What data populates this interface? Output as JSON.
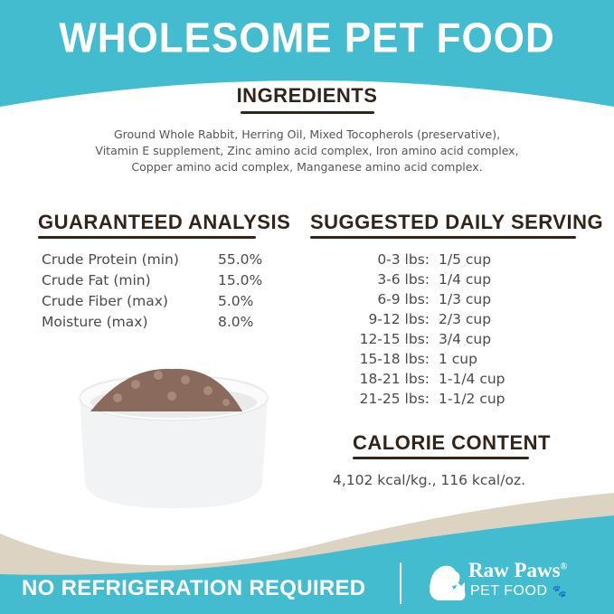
{
  "header": {
    "title": "WHOLESOME PET FOOD"
  },
  "ingredients": {
    "heading": "INGREDIENTS",
    "lines": [
      "Ground Whole Rabbit, Herring Oil, Mixed Tocopherols (preservative),",
      "Vitamin E supplement, Zinc amino acid complex, Iron amino acid complex,",
      "Copper amino acid complex, Manganese amino acid complex."
    ]
  },
  "analysis": {
    "heading": "GUARANTEED ANALYSIS",
    "rows": [
      {
        "label": "Crude Protein (min)",
        "value": "55.0%"
      },
      {
        "label": "Crude Fat (min)",
        "value": "15.0%"
      },
      {
        "label": "Crude Fiber (max)",
        "value": "5.0%"
      },
      {
        "label": "Moisture (max)",
        "value": "8.0%"
      }
    ]
  },
  "serving": {
    "heading": "SUGGESTED DAILY SERVING",
    "rows": [
      {
        "weight": "0-3 lbs:",
        "amount": "1/5 cup"
      },
      {
        "weight": "3-6 lbs:",
        "amount": "1/4 cup"
      },
      {
        "weight": "6-9 lbs:",
        "amount": "1/3 cup"
      },
      {
        "weight": "9-12 lbs:",
        "amount": "2/3 cup"
      },
      {
        "weight": "12-15 lbs:",
        "amount": "3/4 cup"
      },
      {
        "weight": "15-18 lbs:",
        "amount": "1 cup"
      },
      {
        "weight": "18-21 lbs:",
        "amount": "1-1/4 cup"
      },
      {
        "weight": "21-25 lbs:",
        "amount": "1-1/2 cup"
      }
    ]
  },
  "calorie": {
    "heading": "CALORIE CONTENT",
    "text": "4,102 kcal/kg., 116 kcal/oz."
  },
  "footer": {
    "tagline": "NO REFRIGERATION REQUIRED",
    "brand": "Raw Paws",
    "reg": "®",
    "sub": "PET FOOD"
  },
  "colors": {
    "teal": "#43bcd0",
    "brown": "#33241a",
    "beige": "#ddd3c3"
  }
}
